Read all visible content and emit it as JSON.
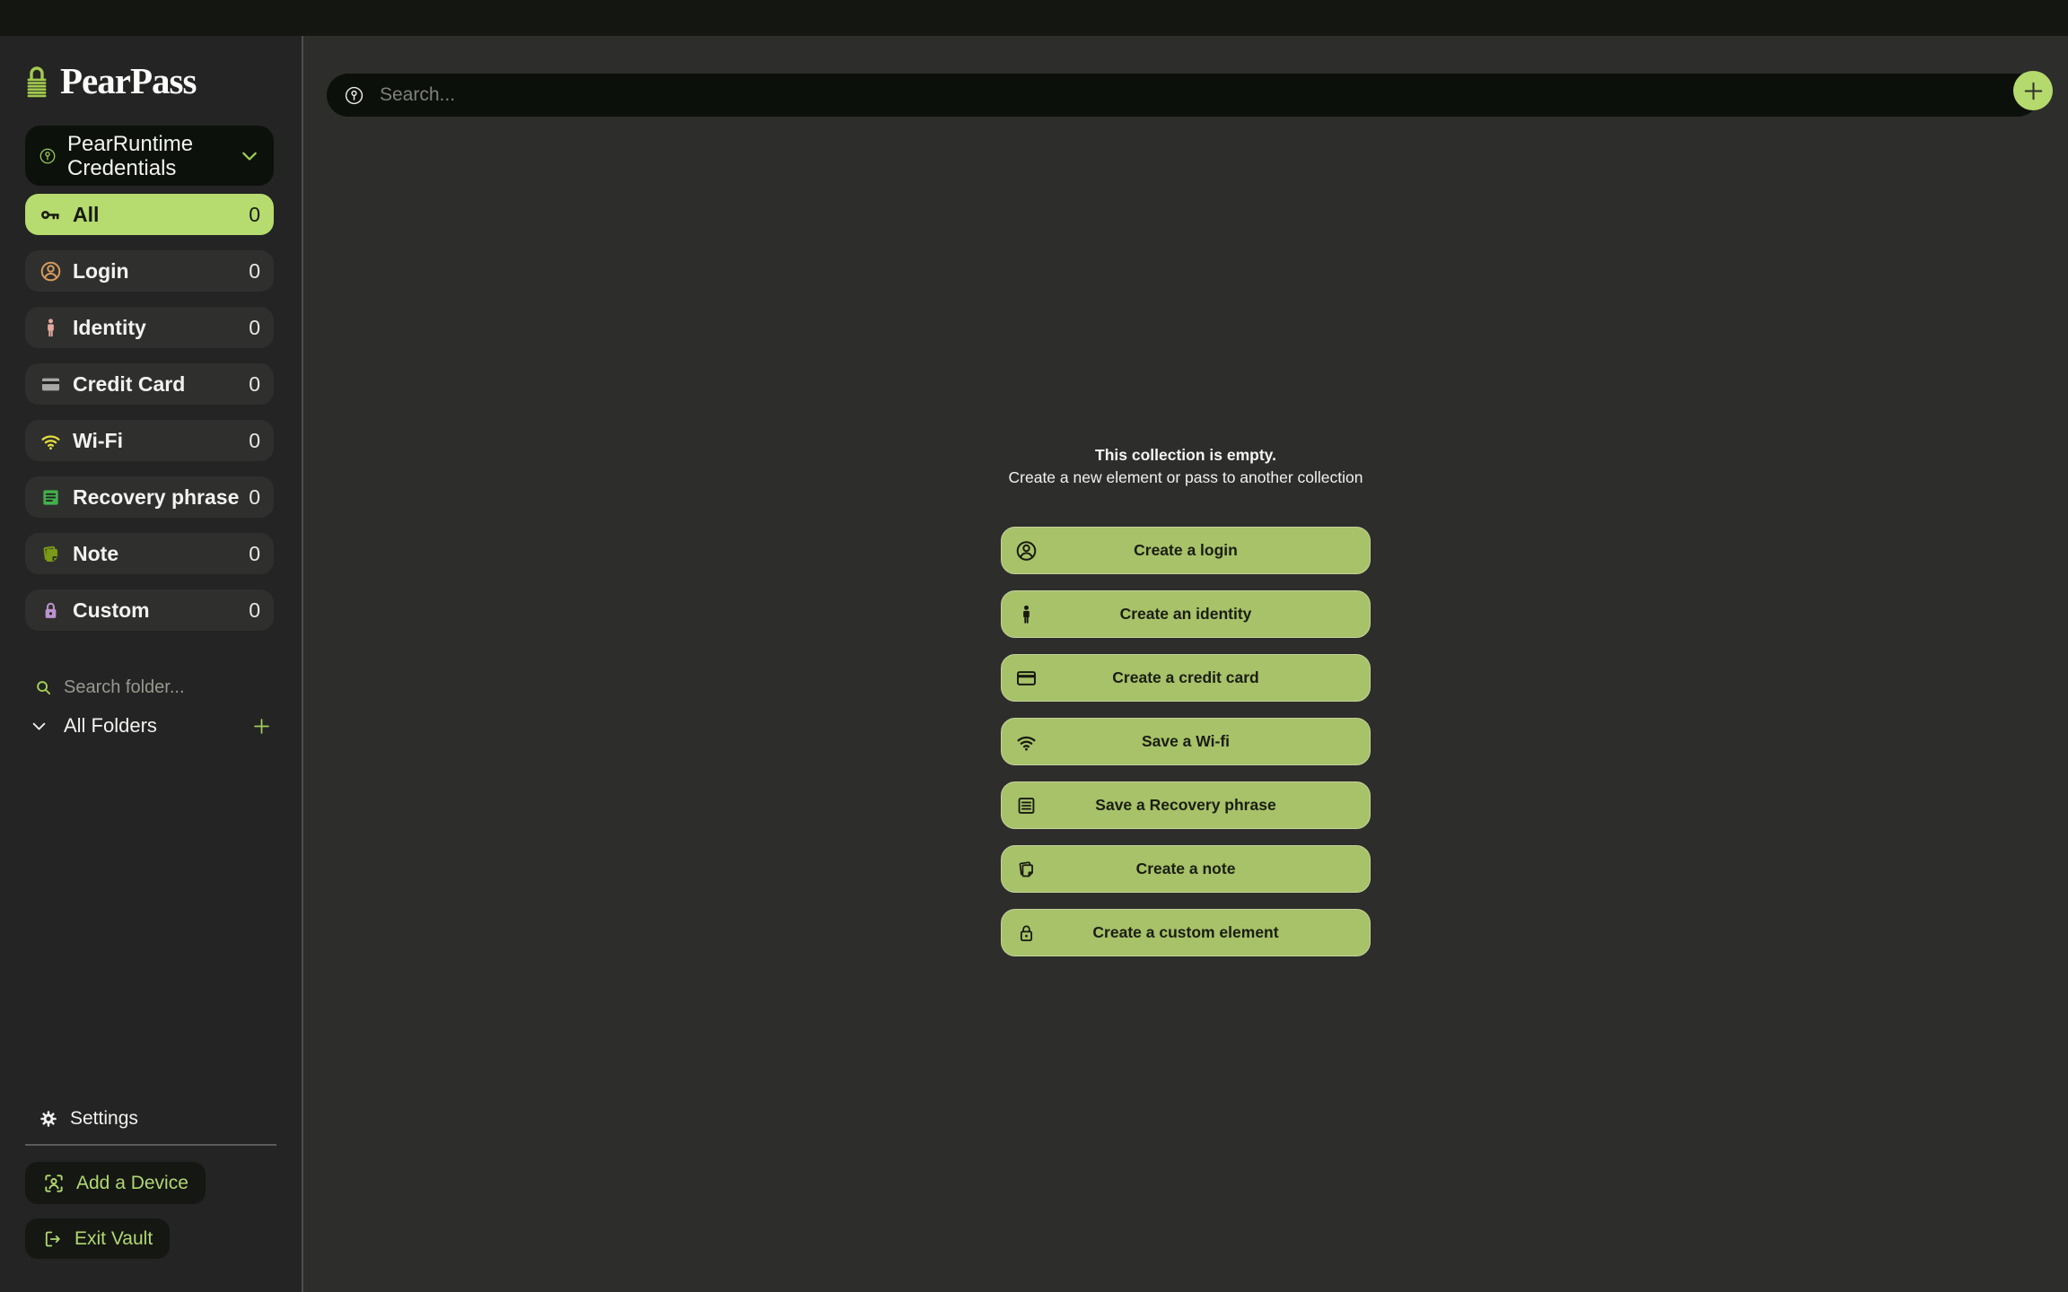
{
  "app": {
    "title": "PearPass"
  },
  "colors": {
    "accent_green": "#b6db6e",
    "button_green": "#a7c269",
    "icon_green": "#a2ce58",
    "pill_text_green": "#b3d871",
    "dark_pill_bg": "#0c110b",
    "sidebar_bg": "#232423",
    "main_bg": "#2d2d2b",
    "topbar_bg": "#141612"
  },
  "sidebar": {
    "vault_selector": {
      "label": "PearRuntime Credentials",
      "icon": "circled-key-icon",
      "chevron": "chevron-down-icon"
    },
    "categories": [
      {
        "label": "All",
        "count": "0",
        "icon": "key-icon",
        "icon_color": "#1b1d13",
        "selected": true
      },
      {
        "label": "Login",
        "count": "0",
        "icon": "user-circle-icon",
        "icon_color": "#d89a5e",
        "selected": false
      },
      {
        "label": "Identity",
        "count": "0",
        "icon": "person-icon",
        "icon_color": "#e6a89d",
        "selected": false
      },
      {
        "label": "Credit Card",
        "count": "0",
        "icon": "credit-card-icon",
        "icon_color": "#a8a8a6",
        "selected": false
      },
      {
        "label": "Wi-Fi",
        "count": "0",
        "icon": "wifi-icon",
        "icon_color": "#e6de3e",
        "selected": false
      },
      {
        "label": "Recovery phrase",
        "count": "0",
        "icon": "recovery-list-icon",
        "icon_color": "#43b04d",
        "selected": false
      },
      {
        "label": "Note",
        "count": "0",
        "icon": "note-icon",
        "icon_color": "#7b9a16",
        "selected": false
      },
      {
        "label": "Custom",
        "count": "0",
        "icon": "lock-icon",
        "icon_color": "#bb93cf",
        "selected": false
      }
    ],
    "folder_search_placeholder": "Search folder...",
    "folders_header": "All Folders",
    "settings_label": "Settings",
    "add_device_label": "Add a Device",
    "exit_vault_label": "Exit Vault"
  },
  "main": {
    "search_placeholder": "Search...",
    "empty_state": {
      "title": "This collection is empty.",
      "subtitle": "Create a new element or pass to another collection"
    },
    "actions": [
      {
        "label": "Create a login",
        "icon": "user-circle-icon"
      },
      {
        "label": "Create an identity",
        "icon": "person-icon"
      },
      {
        "label": "Create a credit card",
        "icon": "credit-card-icon"
      },
      {
        "label": "Save a Wi-fi",
        "icon": "wifi-icon"
      },
      {
        "label": "Save a Recovery phrase",
        "icon": "recovery-list-icon"
      },
      {
        "label": "Create a note",
        "icon": "note-icon"
      },
      {
        "label": "Create a custom element",
        "icon": "lock-icon"
      }
    ]
  }
}
